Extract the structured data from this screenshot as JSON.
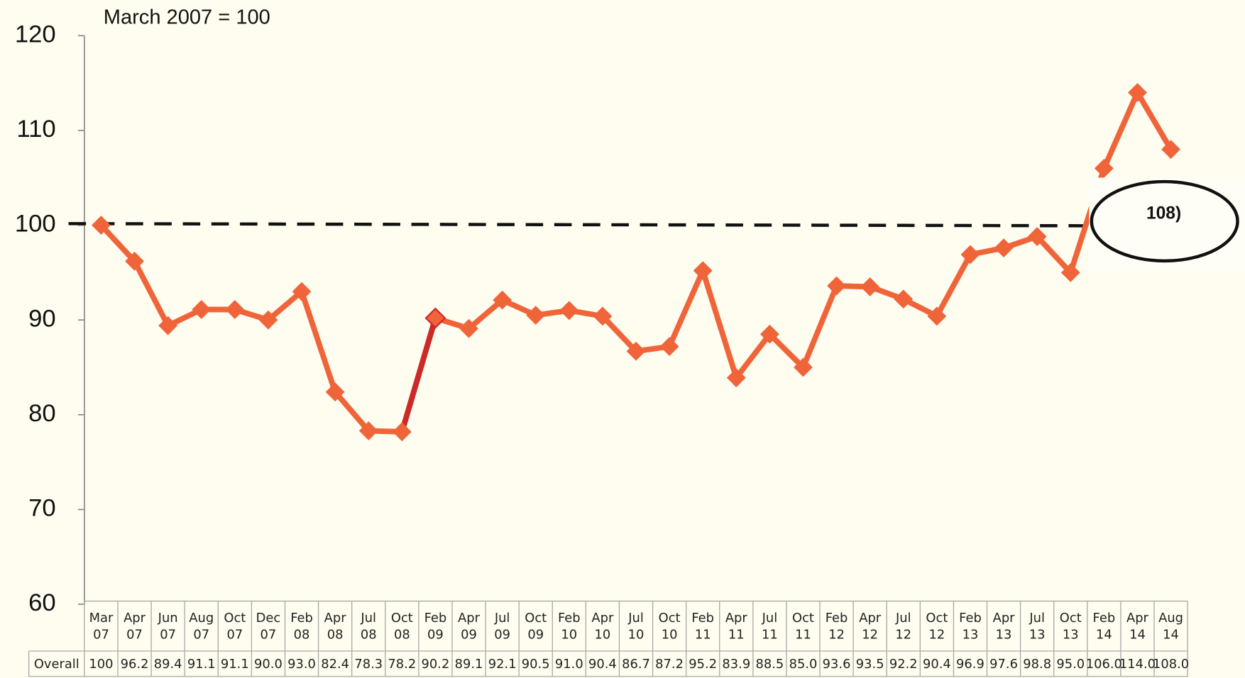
{
  "chart_data": {
    "type": "line",
    "subtitle": "March 2007 = 100",
    "categories": [
      "Mar 07",
      "Apr 07",
      "Jun 07",
      "Aug 07",
      "Oct 07",
      "Dec 07",
      "Feb 08",
      "Apr 08",
      "Jul 08",
      "Oct 08",
      "Feb 09",
      "Apr 09",
      "Jul 09",
      "Oct 09",
      "Feb 10",
      "Apr 10",
      "Jul 10",
      "Oct 10",
      "Feb 11",
      "Apr 11",
      "Jul 11",
      "Oct 11",
      "Feb 12",
      "Apr 12",
      "Jul 12",
      "Oct 12",
      "Feb 13",
      "Apr 13",
      "Jul 13",
      "Oct 13",
      "Feb 14",
      "Apr 14",
      "Aug 14"
    ],
    "series": [
      {
        "name": "Overall",
        "color": "#f0643a",
        "values": [
          100,
          96.2,
          89.4,
          91.1,
          91.1,
          90.0,
          93.0,
          82.4,
          78.3,
          78.2,
          90.2,
          89.1,
          92.1,
          90.5,
          91.0,
          90.4,
          86.7,
          87.2,
          95.2,
          83.9,
          88.5,
          85.0,
          93.6,
          93.5,
          92.2,
          90.4,
          96.9,
          97.6,
          98.8,
          95.0,
          106.0,
          114.0,
          108.0
        ],
        "value_labels": [
          "100",
          "96.2",
          "89.4",
          "91.1",
          "91.1",
          "90.0",
          "93.0",
          "82.4",
          "78.3",
          "78.2",
          "90.2",
          "89.1",
          "92.1",
          "90.5",
          "91.0",
          "90.4",
          "86.7",
          "87.2",
          "95.2",
          "83.9",
          "88.5",
          "85.0",
          "93.6",
          "93.5",
          "92.2",
          "90.4",
          "96.9",
          "97.6",
          "98.8",
          "95.0",
          "106.0",
          "114.0",
          "108.0"
        ],
        "highlight_index": 10,
        "highlight_color": "#cc2a2a"
      }
    ],
    "ylim": [
      60,
      120
    ],
    "yticks": [
      60,
      70,
      80,
      90,
      100,
      110,
      120
    ],
    "reference_line": 100,
    "annotation": "108)"
  }
}
